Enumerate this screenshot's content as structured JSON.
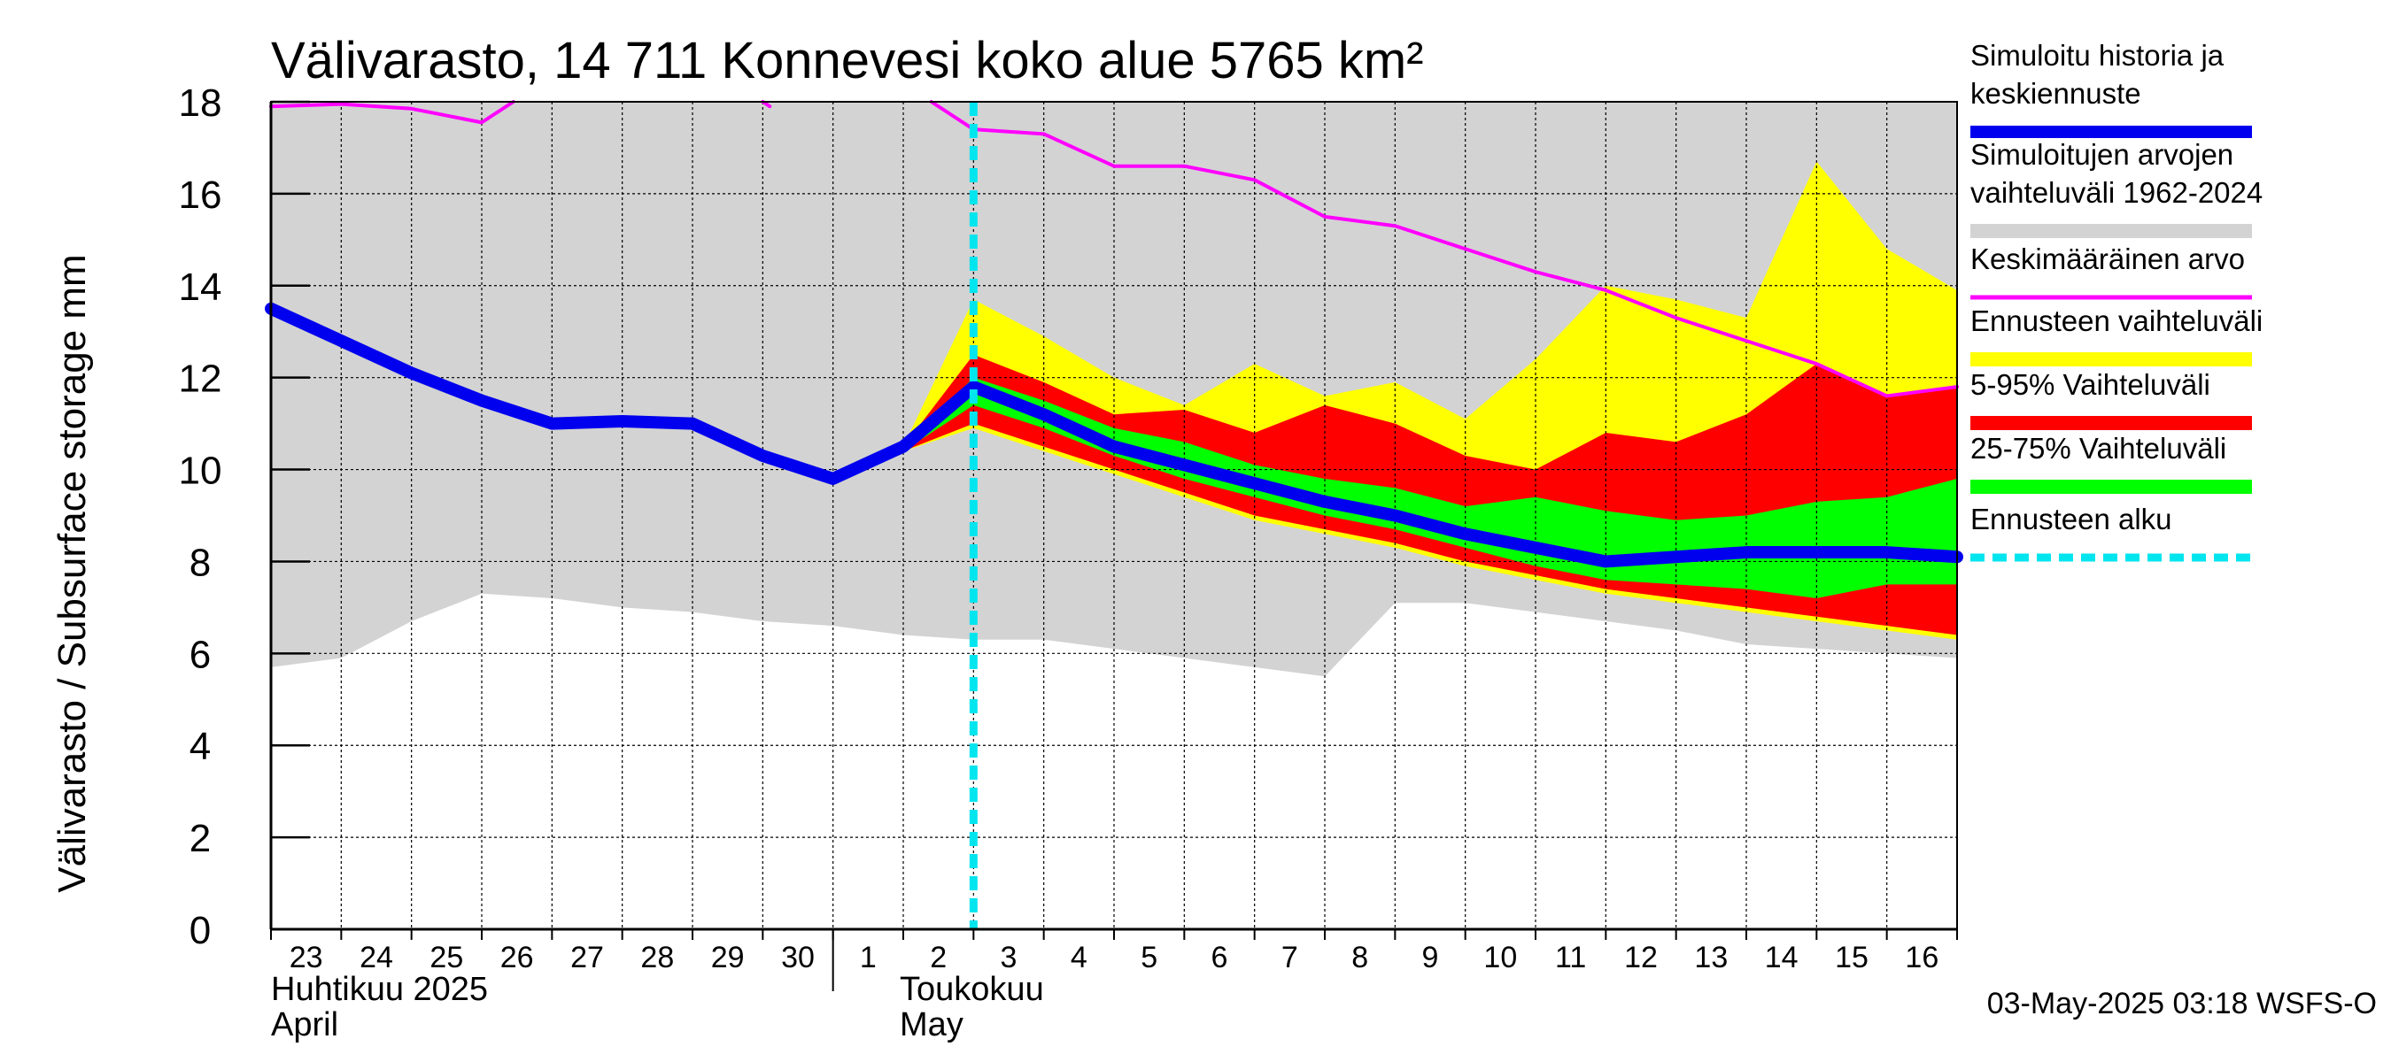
{
  "chart_data": {
    "type": "area",
    "title": "Välivarasto, 14 711 Konnevesi koko alue 5765 km²",
    "ylabel": "Välivarasto / Subsurface storage  mm",
    "ylim": [
      0,
      18
    ],
    "yticks": [
      0,
      2,
      4,
      6,
      8,
      10,
      12,
      14,
      16,
      18
    ],
    "grid": true,
    "x_day_index_range": [
      0,
      24
    ],
    "day_labels": [
      "23",
      "24",
      "25",
      "26",
      "27",
      "28",
      "29",
      "30",
      "1",
      "2",
      "3",
      "4",
      "5",
      "6",
      "7",
      "8",
      "9",
      "10",
      "11",
      "12",
      "13",
      "14",
      "15",
      "16"
    ],
    "month_labels": [
      {
        "fi": "Huhtikuu  2025",
        "en": "April",
        "start_day_index": 0
      },
      {
        "fi": "Toukokuu",
        "en": "May",
        "start_day_index": 8
      }
    ],
    "forecast_start_day_index": 10,
    "series": [
      {
        "name": "Simuloitujen arvojen vaihteluväli 1962-2024",
        "kind": "band",
        "color": "#d3d3d3",
        "x": [
          0,
          1,
          2,
          3,
          4,
          5,
          6,
          7,
          8,
          9,
          10,
          11,
          12,
          13,
          14,
          15,
          16,
          17,
          18,
          19,
          20,
          21,
          22,
          23,
          24
        ],
        "lower": [
          5.7,
          5.9,
          6.7,
          7.3,
          7.2,
          7.0,
          6.9,
          6.7,
          6.6,
          6.4,
          6.3,
          6.3,
          6.1,
          5.9,
          5.7,
          5.5,
          7.1,
          7.1,
          6.9,
          6.7,
          6.5,
          6.2,
          6.1,
          6.0,
          5.9
        ],
        "upper": [
          18,
          18,
          18,
          18,
          18,
          18,
          18,
          18,
          18,
          18,
          18,
          18,
          18,
          18,
          18,
          18,
          18,
          18,
          18,
          18,
          18,
          18,
          18,
          18,
          18
        ]
      },
      {
        "name": "Ennusteen vaihteluväli",
        "kind": "band",
        "color": "#ffff00",
        "x": [
          9,
          10,
          11,
          12,
          13,
          14,
          15,
          16,
          17,
          18,
          19,
          20,
          21,
          22,
          23,
          24
        ],
        "lower": [
          10.4,
          10.9,
          10.4,
          9.9,
          9.4,
          8.9,
          8.6,
          8.3,
          7.9,
          7.6,
          7.3,
          7.1,
          6.9,
          6.7,
          6.5,
          6.3
        ],
        "upper": [
          10.5,
          13.7,
          12.9,
          12.0,
          11.4,
          12.3,
          11.6,
          11.9,
          11.1,
          12.4,
          14.0,
          13.7,
          13.3,
          16.7,
          14.8,
          13.9
        ]
      },
      {
        "name": "5-95% Vaihteluväli",
        "kind": "band",
        "color": "#ff0000",
        "x": [
          9,
          10,
          11,
          12,
          13,
          14,
          15,
          16,
          17,
          18,
          19,
          20,
          21,
          22,
          23,
          24
        ],
        "lower": [
          10.4,
          11.0,
          10.5,
          10.0,
          9.5,
          9.0,
          8.7,
          8.4,
          8.0,
          7.7,
          7.4,
          7.2,
          7.0,
          6.8,
          6.6,
          6.4
        ],
        "upper": [
          10.5,
          12.5,
          11.9,
          11.2,
          11.3,
          10.8,
          11.4,
          11.0,
          10.3,
          10.0,
          10.8,
          10.6,
          11.2,
          12.3,
          11.6,
          11.8
        ]
      },
      {
        "name": "25-75% Vaihteluväli",
        "kind": "band",
        "color": "#00ff00",
        "x": [
          9,
          10,
          11,
          12,
          13,
          14,
          15,
          16,
          17,
          18,
          19,
          20,
          21,
          22,
          23,
          24
        ],
        "lower": [
          10.4,
          11.4,
          10.9,
          10.3,
          9.8,
          9.4,
          9.0,
          8.7,
          8.3,
          7.9,
          7.6,
          7.5,
          7.4,
          7.2,
          7.5,
          7.5
        ],
        "upper": [
          10.5,
          12.0,
          11.5,
          10.9,
          10.6,
          10.1,
          9.8,
          9.6,
          9.2,
          9.4,
          9.1,
          8.9,
          9.0,
          9.3,
          9.4,
          9.8
        ]
      },
      {
        "name": "Keskimääräinen arvo",
        "kind": "line",
        "color": "#ff00ff",
        "segments": [
          {
            "x": [
              0,
              1,
              2,
              3,
              3.45
            ],
            "y": [
              17.9,
              17.95,
              17.85,
              17.55,
              18.0
            ]
          },
          {
            "x": [
              7.0,
              7.1
            ],
            "y": [
              18.0,
              17.9
            ]
          },
          {
            "x": [
              9.4,
              10,
              11,
              12,
              13,
              14,
              15,
              16,
              17,
              18,
              19,
              20,
              21,
              22,
              23,
              24
            ],
            "y": [
              18.0,
              17.4,
              17.3,
              16.6,
              16.6,
              16.3,
              15.5,
              15.3,
              14.8,
              14.3,
              13.9,
              13.3,
              12.8,
              12.3,
              11.6,
              11.8
            ]
          }
        ]
      },
      {
        "name": "Simuloitu historia ja keskiennuste",
        "kind": "line",
        "color": "#0000ee",
        "x": [
          0,
          1,
          2,
          3,
          4,
          5,
          6,
          7,
          8,
          9,
          10,
          11,
          12,
          13,
          14,
          15,
          16,
          17,
          18,
          19,
          20,
          21,
          22,
          23,
          24
        ],
        "y": [
          13.5,
          12.8,
          12.1,
          11.5,
          11.0,
          11.05,
          11.0,
          10.3,
          9.8,
          10.5,
          11.8,
          11.2,
          10.5,
          10.1,
          9.7,
          9.3,
          9.0,
          8.6,
          8.3,
          8.0,
          8.1,
          8.2,
          8.2,
          8.2,
          8.1
        ]
      }
    ],
    "legend": [
      {
        "label": "Simuloitu historia ja keskiennuste",
        "color": "#0000ee",
        "style": "thick-line"
      },
      {
        "label": "Simuloitujen arvojen vaihteluväli 1962-2024",
        "color": "#d3d3d3",
        "style": "band"
      },
      {
        "label": "Keskimääräinen arvo",
        "color": "#ff00ff",
        "style": "line"
      },
      {
        "label": "Ennusteen vaihteluväli",
        "color": "#ffff00",
        "style": "band"
      },
      {
        "label": "5-95% Vaihteluväli",
        "color": "#ff0000",
        "style": "band"
      },
      {
        "label": "25-75% Vaihteluväli",
        "color": "#00ff00",
        "style": "band"
      },
      {
        "label": "Ennusteen alku",
        "color": "#00e5ee",
        "style": "dashed"
      }
    ],
    "legend_text_lines": [
      [
        "Simuloitu historia ja",
        "keskiennuste"
      ],
      [
        "Simuloitujen arvojen",
        "vaihteluväli 1962-2024"
      ],
      [
        "Keskimääräinen arvo"
      ],
      [
        "Ennusteen vaihteluväli"
      ],
      [
        "5-95% Vaihteluväli"
      ],
      [
        "25-75% Vaihteluväli"
      ],
      [
        "Ennusteen alku"
      ]
    ],
    "footer": "03-May-2025 03:18 WSFS-O"
  }
}
